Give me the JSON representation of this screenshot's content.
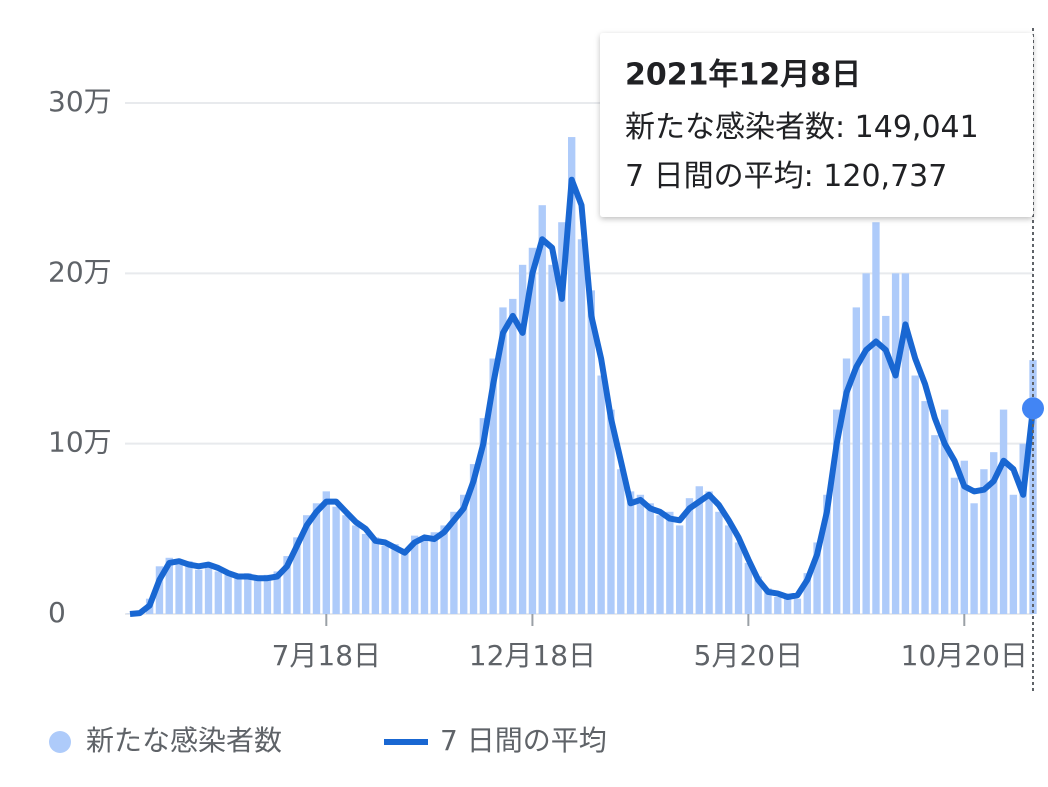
{
  "chart_data": {
    "type": "bar-line",
    "categories": [
      null,
      null,
      null,
      null,
      null,
      null,
      null,
      null,
      null,
      null,
      null,
      null,
      null,
      null,
      null,
      null,
      null,
      null,
      null,
      null,
      "7月18日",
      null,
      null,
      null,
      null,
      null,
      null,
      null,
      null,
      null,
      null,
      null,
      null,
      null,
      null,
      null,
      null,
      null,
      null,
      null,
      null,
      "12月18日",
      null,
      null,
      null,
      null,
      null,
      null,
      null,
      null,
      null,
      null,
      null,
      null,
      null,
      null,
      null,
      null,
      null,
      null,
      null,
      null,
      null,
      "5月20日",
      null,
      null,
      null,
      null,
      null,
      null,
      null,
      null,
      null,
      null,
      null,
      null,
      null,
      null,
      null,
      null,
      null,
      null,
      null,
      null,
      null,
      "10月20日",
      null,
      null,
      null,
      null,
      null,
      null,
      null
    ],
    "series": [
      {
        "name": "新たな感染者数",
        "color": "#aecbfa",
        "values": [
          200,
          1200,
          9000,
          28000,
          33000,
          29000,
          31000,
          26000,
          30000,
          25000,
          23000,
          21000,
          24000,
          20000,
          23000,
          25000,
          34000,
          45000,
          58000,
          65000,
          72000,
          63000,
          58000,
          52000,
          47000,
          45000,
          40000,
          41000,
          38000,
          46000,
          43000,
          48000,
          52000,
          60000,
          70000,
          88000,
          115000,
          150000,
          180000,
          185000,
          205000,
          215000,
          240000,
          205000,
          230000,
          280000,
          220000,
          190000,
          140000,
          120000,
          85000,
          72000,
          70000,
          65000,
          58000,
          60000,
          52000,
          68000,
          75000,
          72000,
          60000,
          52000,
          42000,
          30000,
          22000,
          15000,
          10000,
          12000,
          9000,
          24000,
          42000,
          70000,
          120000,
          150000,
          180000,
          200000,
          230000,
          175000,
          200000,
          200000,
          140000,
          125000,
          105000,
          120000,
          80000,
          90000,
          65000,
          85000,
          95000,
          120000,
          70000,
          100000,
          149041
        ]
      },
      {
        "name": "7 日間の平均",
        "color": "#1967d2",
        "values": [
          0,
          500,
          5000,
          20000,
          30000,
          31000,
          29000,
          28000,
          29000,
          27000,
          24000,
          22000,
          22000,
          21000,
          21000,
          22000,
          28000,
          40000,
          52000,
          60000,
          66000,
          66000,
          60000,
          54000,
          50000,
          43000,
          42000,
          39000,
          36000,
          42000,
          45000,
          44000,
          48000,
          55000,
          62000,
          78000,
          100000,
          135000,
          165000,
          175000,
          165000,
          200000,
          220000,
          215000,
          185000,
          255000,
          240000,
          175000,
          150000,
          115000,
          90000,
          65000,
          67000,
          62000,
          60000,
          56000,
          55000,
          62000,
          66000,
          70000,
          64000,
          55000,
          45000,
          32000,
          20000,
          13000,
          12000,
          10000,
          11000,
          20000,
          35000,
          60000,
          100000,
          130000,
          145000,
          155000,
          160000,
          155000,
          140000,
          170000,
          150000,
          135000,
          115000,
          100000,
          90000,
          75000,
          72000,
          73000,
          78000,
          90000,
          85000,
          70000,
          120737
        ]
      }
    ],
    "ylim": [
      0,
      300000
    ],
    "yticks": [
      0,
      {
        "value": 100000,
        "label": "10万"
      },
      {
        "value": 200000,
        "label": "20万"
      },
      {
        "value": 300000,
        "label": "30万"
      }
    ],
    "grid": true,
    "legend": "bottom",
    "tooltip": {
      "date": "2021年12月8日",
      "rows": [
        {
          "label": "新たな感染者数:",
          "value": "149,041"
        },
        {
          "label": "7 日間の平均:",
          "value": "120,737"
        }
      ]
    }
  }
}
